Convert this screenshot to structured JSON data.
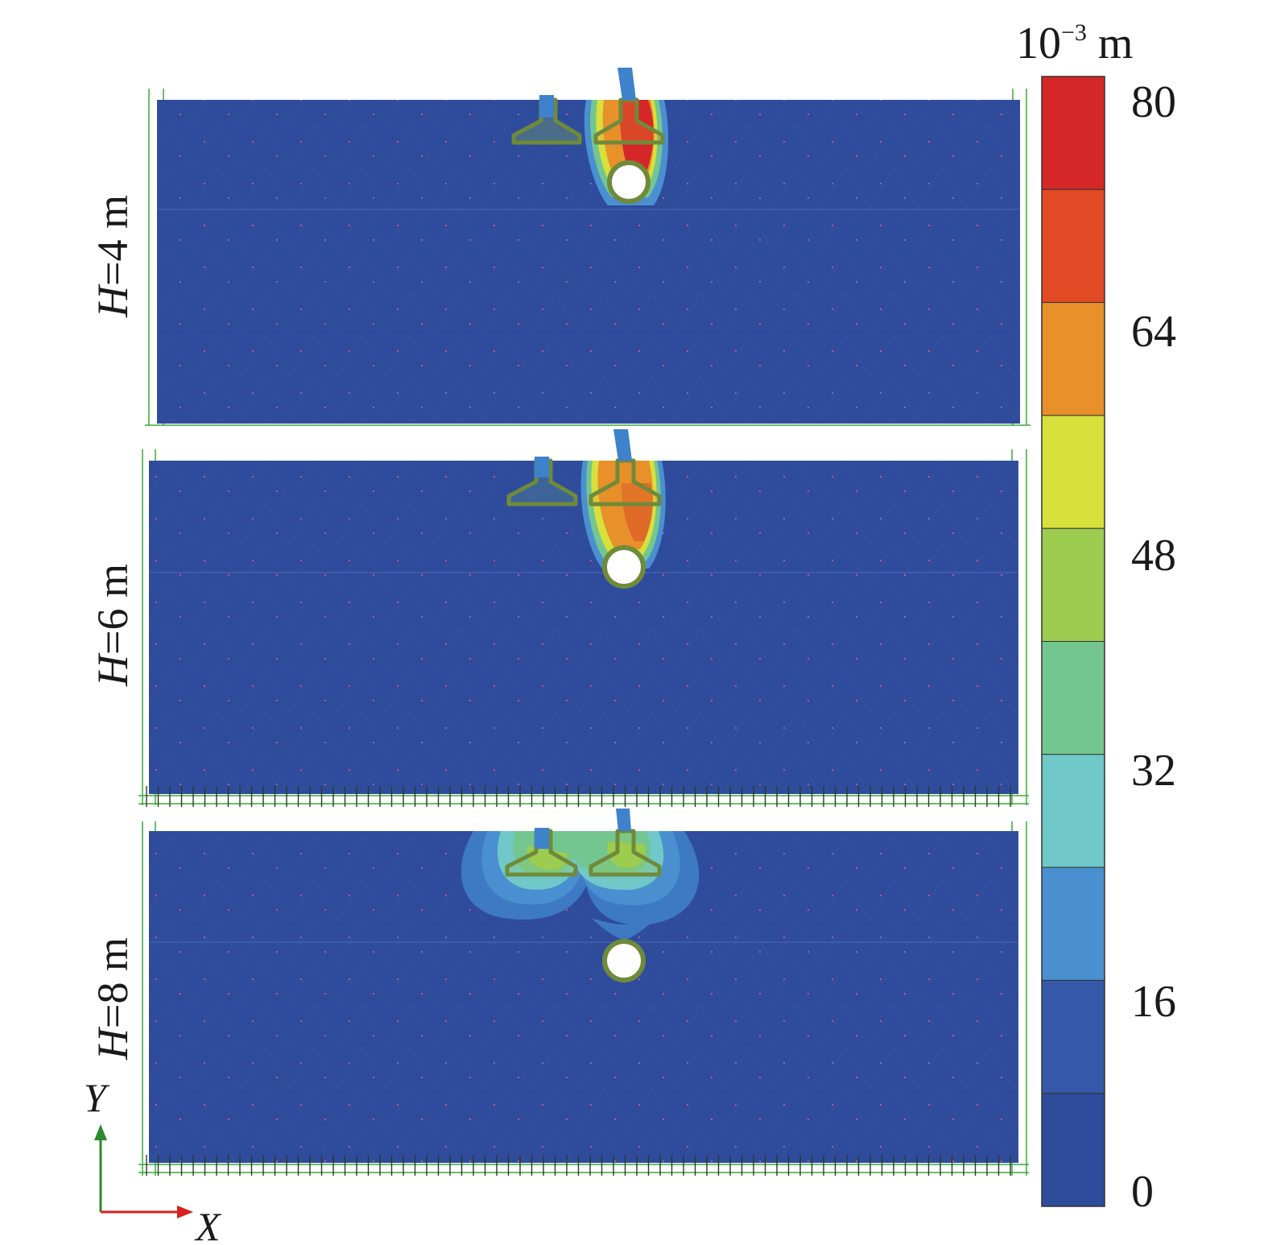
{
  "figure": {
    "panels": [
      {
        "label_var": "H",
        "label_rest": "=4 m"
      },
      {
        "label_var": "H",
        "label_rest": "=6 m"
      },
      {
        "label_var": "H",
        "label_rest": "=8 m"
      }
    ],
    "axes": {
      "y_label": "Y",
      "x_label": "X"
    }
  },
  "colorbar": {
    "unit_base": "10",
    "unit_exp": "−3",
    "unit_suffix": " m",
    "ticks": [
      "80",
      "64",
      "48",
      "32",
      "16",
      "0"
    ],
    "levels": [
      "#d62728",
      "#e04a25",
      "#e8902a",
      "#d8e03c",
      "#9ccc50",
      "#74c690",
      "#70c8c8",
      "#4a90d0",
      "#3558a8",
      "#2f4c9c"
    ]
  },
  "colors": {
    "background_field": "#2f4c9c",
    "outline": "#6f8a3a",
    "boundary_line": "#3aa83a"
  }
}
